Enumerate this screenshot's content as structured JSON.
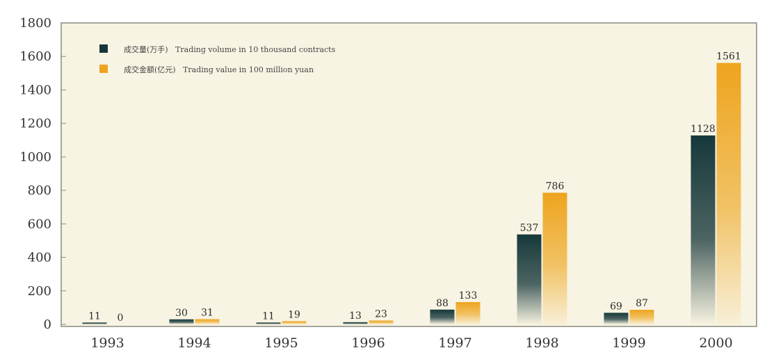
{
  "chart_data": {
    "type": "bar",
    "categories": [
      "1993",
      "1994",
      "1995",
      "1996",
      "1997",
      "1998",
      "1999",
      "2000"
    ],
    "series": [
      {
        "name": "成交量(万手)   Trading volume in 10 thousand contracts",
        "values": [
          11,
          30,
          11,
          13,
          88,
          537,
          69,
          1128
        ],
        "color": "#16383a"
      },
      {
        "name": "成交金额(亿元)   Trading value in 100 million yuan",
        "values": [
          0,
          31,
          19,
          23,
          133,
          786,
          87,
          1561
        ],
        "color": "#eea41e"
      }
    ],
    "data_labels": [
      [
        "11",
        "30",
        "11",
        "13",
        "88",
        "537",
        "69",
        "1128"
      ],
      [
        "0",
        "31",
        "19",
        "23",
        "133",
        "786",
        "87",
        "1561"
      ]
    ],
    "y_ticks": [
      "0",
      "200",
      "400",
      "600",
      "800",
      "1000",
      "1200",
      "1400",
      "1600",
      "1800"
    ],
    "ylim": [
      0,
      1800
    ],
    "title": "",
    "xlabel": "",
    "ylabel": "",
    "legend_position": "top-left",
    "grid": false,
    "colors": {
      "background": "#ffffff",
      "plot_background": "#f8f4e3",
      "plot_border": "#8a8a7e"
    }
  }
}
